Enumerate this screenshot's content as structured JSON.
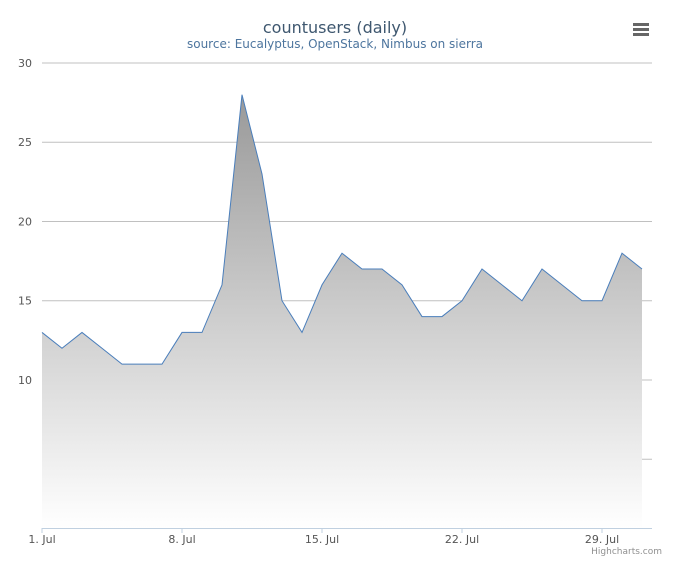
{
  "chart_data": {
    "type": "area",
    "title": "countusers (daily)",
    "subtitle": "source: Eucalyptus, OpenStack, Nimbus on sierra",
    "credits": "Highcharts.com",
    "x": [
      1,
      2,
      3,
      4,
      5,
      6,
      7,
      8,
      9,
      10,
      11,
      12,
      13,
      14,
      15,
      16,
      17,
      18,
      19,
      20,
      21,
      22,
      23,
      24,
      25,
      26,
      27,
      28,
      29,
      30,
      31
    ],
    "values": [
      13,
      12,
      13,
      12,
      11,
      11,
      11,
      13,
      13,
      16,
      28,
      23,
      15,
      13,
      16,
      18,
      17,
      17,
      16,
      14,
      14,
      15,
      17,
      16,
      15,
      17,
      16,
      15,
      15,
      18,
      17
    ],
    "color": "#4a7ebb",
    "fill_top": "#999999",
    "fill_bottom": "#ffffff",
    "xlim": [
      1,
      31.5
    ],
    "xticks": [
      {
        "value": 1,
        "label": "1. Jul"
      },
      {
        "value": 8,
        "label": "8. Jul"
      },
      {
        "value": 15,
        "label": "15. Jul"
      },
      {
        "value": 22,
        "label": "22. Jul"
      },
      {
        "value": 29,
        "label": "29. Jul"
      }
    ],
    "ylim": [
      0.66,
      30
    ],
    "yticks": [
      {
        "value": 5,
        "label": null
      },
      10,
      15,
      20,
      25,
      30
    ],
    "grid": true
  }
}
